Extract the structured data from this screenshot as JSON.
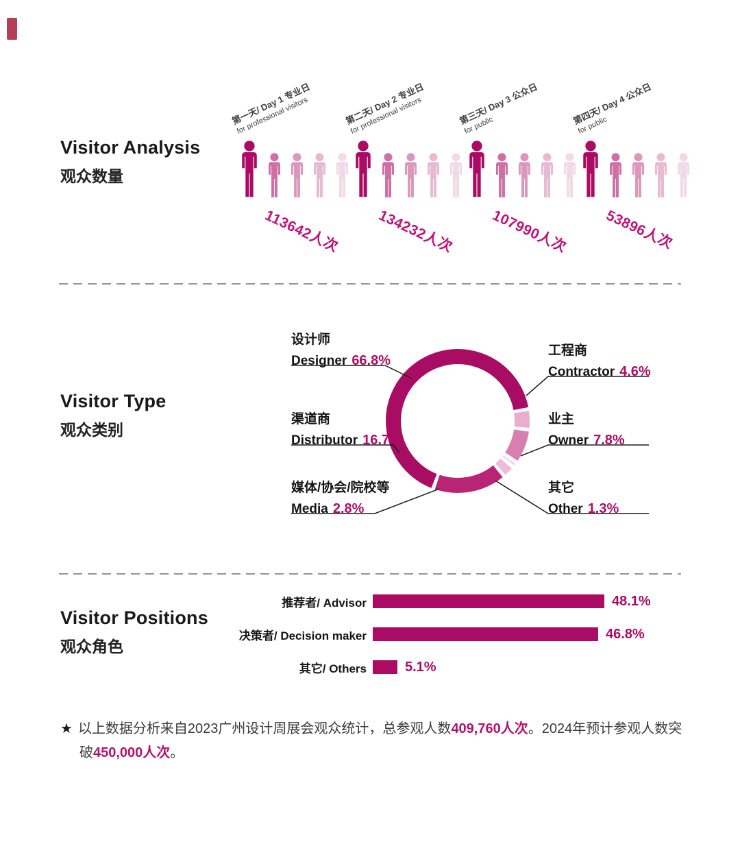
{
  "colors": {
    "accent": "#ab0b64",
    "count_text": "#c0137a",
    "percent_text": "#ae0c67",
    "donut_segments": {
      "designer": "#a80c63",
      "contractor": "#eaaccf",
      "owner": "#d77fb0",
      "other": "#f4d4e6",
      "media": "#eebcd9",
      "distributor": "#b82577"
    }
  },
  "sections": {
    "analysis": {
      "title": "Visitor Analysis",
      "subtitle": "观众数量",
      "days": [
        {
          "label": "第一天/ Day 1 专业日",
          "sublabel": "for professional visitors",
          "count": "113642人次"
        },
        {
          "label": "第二天/ Day 2 专业日",
          "sublabel": "for professional visitors",
          "count": "134232人次"
        },
        {
          "label": "第三天/ Day 3 公众日",
          "sublabel": "for public",
          "count": "107990人次"
        },
        {
          "label": "第四天/ Day 4 公众日",
          "sublabel": "for public",
          "count": "53896人次"
        }
      ]
    },
    "type": {
      "title": "Visitor Type",
      "subtitle": "观众类别",
      "labels": {
        "designer": {
          "zh": "设计师",
          "en": "Designer",
          "value": "66.8%"
        },
        "distributor": {
          "zh": "渠道商",
          "en": "Distributor",
          "value": "16.7%"
        },
        "media": {
          "zh": "媒体/协会/院校等",
          "en": "Media",
          "value": "2.8%"
        },
        "contractor": {
          "zh": "工程商",
          "en": "Contractor",
          "value": "4.6%"
        },
        "owner": {
          "zh": "业主",
          "en": "Owner",
          "value": "7.8%"
        },
        "other": {
          "zh": "其它",
          "en": "Other",
          "value": "1.3%"
        }
      }
    },
    "positions": {
      "title": "Visitor Positions",
      "subtitle": "观众角色",
      "rows": [
        {
          "label": "推荐者/ Advisor",
          "value": "48.1%"
        },
        {
          "label": "决策者/ Decision maker",
          "value": "46.8%"
        },
        {
          "label": "其它/ Others",
          "value": "5.1%"
        }
      ]
    }
  },
  "footnote": {
    "star": "★",
    "part1": "以上数据分析来自2023广州设计周展会观众统计，总参观人数",
    "highlight1": "409,760人次",
    "part2": "。2024年预计参观人数突破",
    "highlight2": "450,000人次",
    "part3": "。"
  },
  "chart_data": [
    {
      "type": "bar",
      "subtype": "pictogram",
      "title": "Visitor Analysis 观众数量",
      "categories": [
        "第一天/ Day 1 专业日 (for professional visitors)",
        "第二天/ Day 2 专业日 (for professional visitors)",
        "第三天/ Day 3 公众日 (for public)",
        "第四天/ Day 4 公众日 (for public)"
      ],
      "values": [
        113642,
        134232,
        107990,
        53896
      ],
      "unit": "人次"
    },
    {
      "type": "pie",
      "subtype": "donut",
      "title": "Visitor Type 观众类别",
      "keys": [
        "designer",
        "distributor",
        "media",
        "contractor",
        "owner",
        "other"
      ],
      "labels": [
        "设计师 Designer",
        "渠道商 Distributor",
        "媒体/协会/院校等 Media",
        "工程商 Contractor",
        "业主 Owner",
        "其它 Other"
      ],
      "values": [
        66.8,
        16.7,
        2.8,
        4.6,
        7.8,
        1.3
      ],
      "unit": "%"
    },
    {
      "type": "bar",
      "orientation": "horizontal",
      "title": "Visitor Positions 观众角色",
      "categories": [
        "推荐者/ Advisor",
        "决策者/ Decision maker",
        "其它/ Others"
      ],
      "values": [
        48.1,
        46.8,
        5.1
      ],
      "unit": "%",
      "xlim": [
        0,
        50
      ]
    }
  ]
}
